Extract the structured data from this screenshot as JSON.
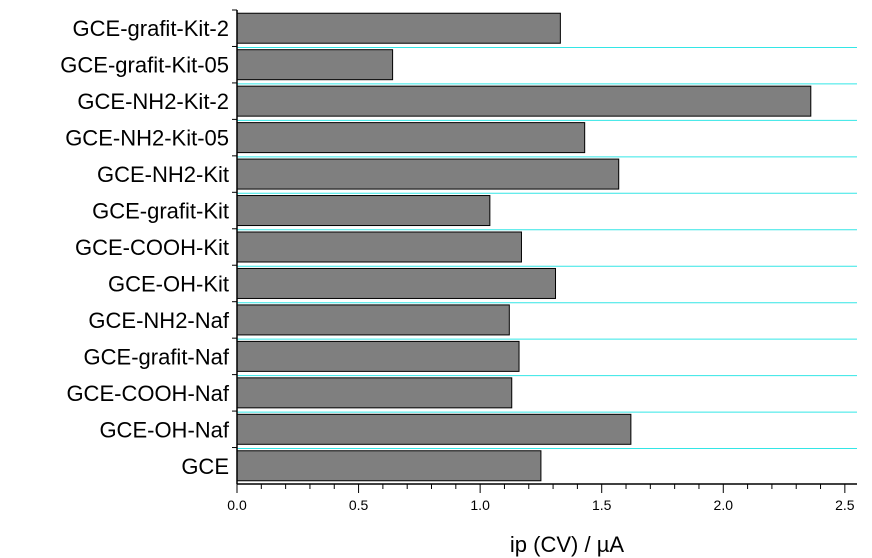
{
  "chart_data": {
    "type": "bar",
    "orientation": "horizontal",
    "categories": [
      "GCE-grafit-Kit-2",
      "GCE-grafit-Kit-05",
      "GCE-NH2-Kit-2",
      "GCE-NH2-Kit-05",
      "GCE-NH2-Kit",
      "GCE-grafit-Kit",
      "GCE-COOH-Kit",
      "GCE-OH-Kit",
      "GCE-NH2-Naf",
      "GCE-grafit-Naf",
      "GCE-COOH-Naf",
      "GCE-OH-Naf",
      "GCE"
    ],
    "values": [
      1.33,
      0.64,
      2.36,
      1.43,
      1.57,
      1.04,
      1.17,
      1.31,
      1.12,
      1.16,
      1.13,
      1.62,
      1.25
    ],
    "xlabel": "ip (CV) / µA",
    "ylabel": "",
    "title": "",
    "xlim": [
      0.0,
      2.55
    ],
    "x_ticks": [
      "0.0",
      "0.5",
      "1.0",
      "1.5",
      "2.0",
      "2.5"
    ],
    "grid": "horizontal",
    "colors": {
      "bar_fill": "#7f7f7f",
      "bar_stroke": "#000000",
      "grid": "#33e6e6",
      "axis": "#000000"
    }
  }
}
